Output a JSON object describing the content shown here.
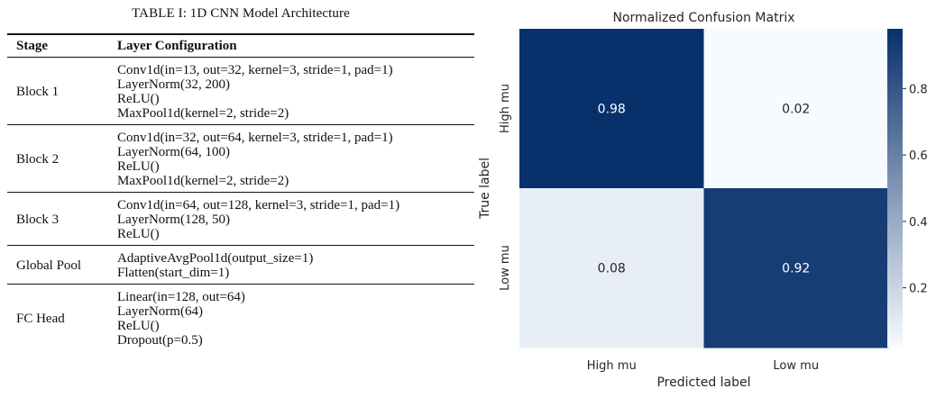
{
  "table": {
    "caption": "TABLE I: 1D CNN Model Architecture",
    "headers": [
      "Stage",
      "Layer Configuration"
    ],
    "rows": [
      {
        "stage": "Block 1",
        "layers": [
          "Conv1d(in=13, out=32, kernel=3, stride=1, pad=1)",
          "LayerNorm(32, 200)",
          "ReLU()",
          "MaxPool1d(kernel=2, stride=2)"
        ]
      },
      {
        "stage": "Block 2",
        "layers": [
          "Conv1d(in=32, out=64, kernel=3, stride=1, pad=1)",
          "LayerNorm(64, 100)",
          "ReLU()",
          "MaxPool1d(kernel=2, stride=2)"
        ]
      },
      {
        "stage": "Block 3",
        "layers": [
          "Conv1d(in=64, out=128, kernel=3, stride=1, pad=1)",
          "LayerNorm(128, 50)",
          "ReLU()"
        ]
      },
      {
        "stage": "Global Pool",
        "layers": [
          "AdaptiveAvgPool1d(output_size=1)",
          "Flatten(start_dim=1)"
        ]
      },
      {
        "stage": "FC Head",
        "layers": [
          "Linear(in=128, out=64)",
          "LayerNorm(64)",
          "ReLU()",
          "Dropout(p=0.5)"
        ]
      }
    ]
  },
  "chart_data": {
    "type": "heatmap",
    "title": "Normalized Confusion Matrix",
    "xlabel": "Predicted label",
    "ylabel": "True label",
    "x_categories": [
      "High mu",
      "Low mu"
    ],
    "y_categories": [
      "High mu",
      "Low mu"
    ],
    "values": [
      [
        0.98,
        0.02
      ],
      [
        0.08,
        0.92
      ]
    ],
    "value_labels": [
      [
        "0.98",
        "0.02"
      ],
      [
        "0.08",
        "0.92"
      ]
    ],
    "colormap": "Blues",
    "colorbar": {
      "range": [
        0.02,
        0.98
      ],
      "ticks": [
        0.2,
        0.4,
        0.6,
        0.8
      ],
      "tick_labels": [
        "0.2",
        "0.4",
        "0.6",
        "0.8"
      ]
    },
    "colors": {
      "low": "#f7fbff",
      "high": "#08306b",
      "light_text": "#ffffff",
      "dark_text": "#262626"
    }
  }
}
